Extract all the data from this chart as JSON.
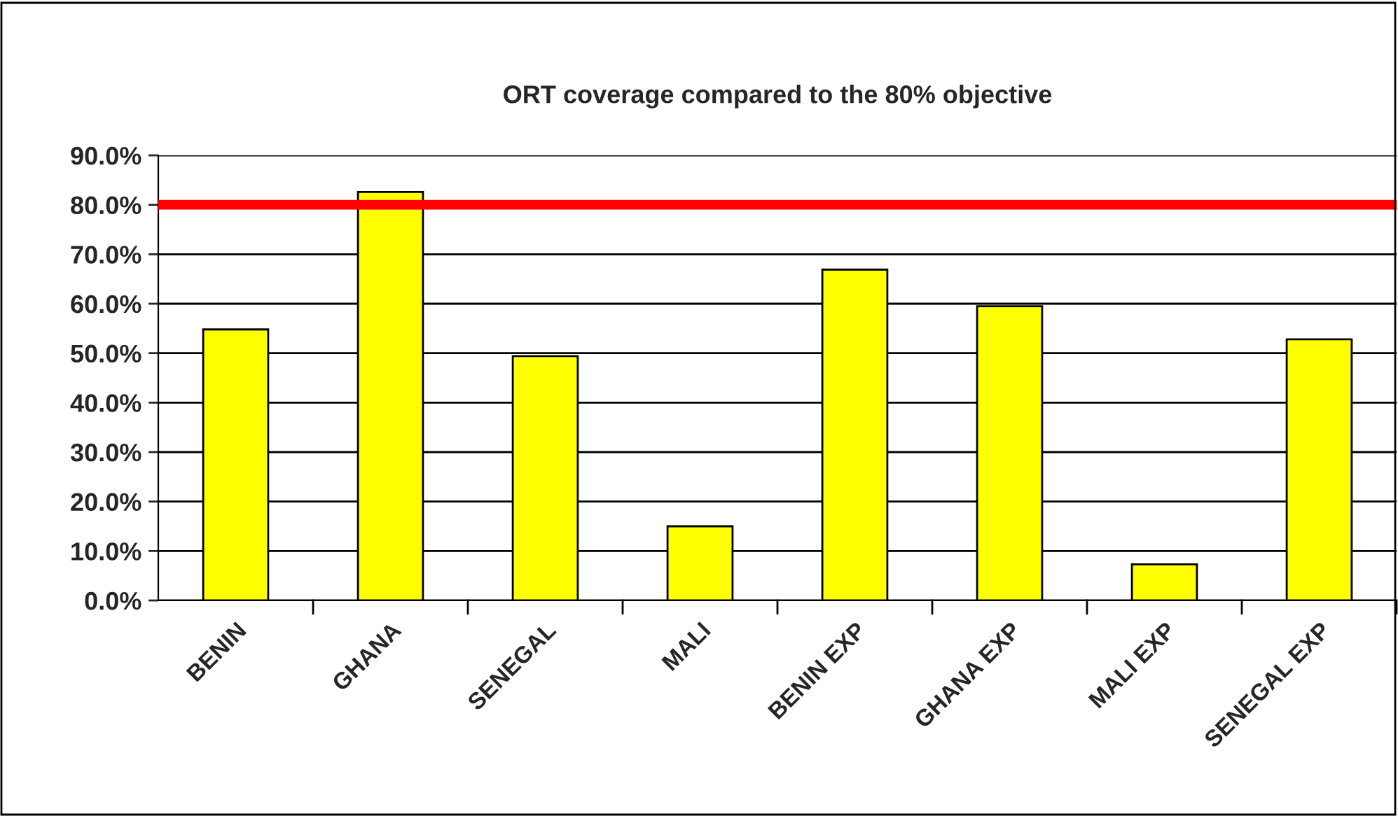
{
  "chart_data": {
    "type": "bar",
    "title": "ORT coverage compared to the 80% objective",
    "categories": [
      "BENIN",
      "GHANA",
      "SENEGAL",
      "MALI",
      "BENIN EXP",
      "GHANA EXP",
      "MALI EXP",
      "SENEGAL EXP"
    ],
    "values": [
      54.8,
      82.6,
      49.4,
      15.0,
      66.9,
      59.5,
      7.3,
      52.8
    ],
    "color": "#ffff00",
    "ylim": [
      0,
      90
    ],
    "yticks": [
      {
        "value": 0,
        "label": "0.0%"
      },
      {
        "value": 10,
        "label": "10.0%"
      },
      {
        "value": 20,
        "label": "20.0%"
      },
      {
        "value": 30,
        "label": "30.0%"
      },
      {
        "value": 40,
        "label": "40.0%"
      },
      {
        "value": 50,
        "label": "50.0%"
      },
      {
        "value": 60,
        "label": "60.0%"
      },
      {
        "value": 70,
        "label": "70.0%"
      },
      {
        "value": 80,
        "label": "80.0%"
      },
      {
        "value": 90,
        "label": "90.0%"
      }
    ],
    "grid": "y",
    "ref_lines": [
      {
        "axis": "y",
        "value": 80,
        "color": "#ff0000"
      }
    ]
  }
}
